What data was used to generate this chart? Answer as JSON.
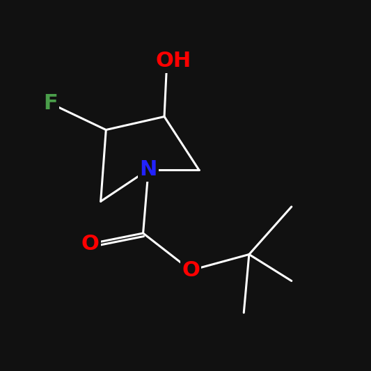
{
  "background_color": "#111111",
  "bond_color": "#ffffff",
  "atom_colors": {
    "F": "#4a9e4a",
    "O": "#ff0000",
    "N": "#2222ff",
    "C": "#ffffff"
  },
  "bond_lw": 2.2,
  "fig_size": [
    5.33,
    5.33
  ],
  "dpi": 100
}
